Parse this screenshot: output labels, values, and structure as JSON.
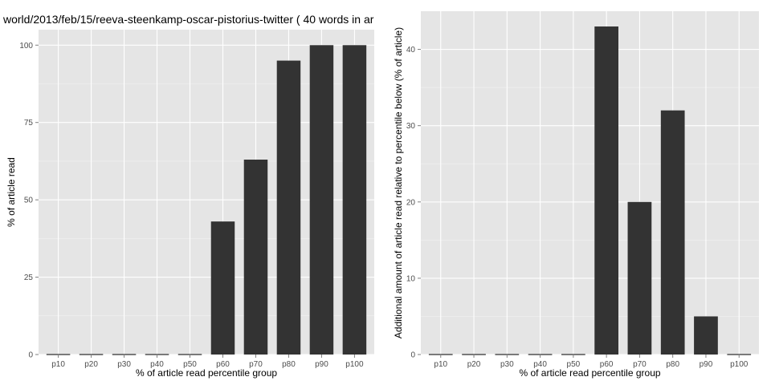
{
  "page": {
    "title": "world/2013/feb/15/reeva-steenkamp-oscar-pistorius-twitter ( 40 words in ar"
  },
  "colors": {
    "panel_bg": "#e5e5e5",
    "grid_major": "#ffffff",
    "grid_minor": "#f2f2f2",
    "bar_fill": "#333333",
    "tick_text": "#4d4d4d"
  },
  "chart_data": [
    {
      "type": "bar",
      "title": "world/2013/feb/15/reeva-steenkamp-oscar-pistorius-twitter ( 40 words in ar",
      "xlabel": "% of article read percentile group",
      "ylabel": "% of article read",
      "categories": [
        "p10",
        "p20",
        "p30",
        "p40",
        "p50",
        "p60",
        "p70",
        "p80",
        "p90",
        "p100"
      ],
      "values": [
        0,
        0,
        0,
        0,
        0,
        43,
        63,
        95,
        100,
        100
      ],
      "ylim": [
        0,
        105
      ],
      "yticks": [
        0,
        25,
        50,
        75,
        100
      ],
      "ytick_labels": [
        "0",
        "25",
        "50",
        "75",
        "100"
      ],
      "grid": true,
      "bar_color": "#333333"
    },
    {
      "type": "bar",
      "title": "",
      "xlabel": "% of article read percentile group",
      "ylabel": "Additional amount of article read relative to percentile below (% of article)",
      "categories": [
        "p10",
        "p20",
        "p30",
        "p40",
        "p50",
        "p60",
        "p70",
        "p80",
        "p90",
        "p100"
      ],
      "values": [
        0,
        0,
        0,
        0,
        0,
        43,
        20,
        32,
        5,
        0
      ],
      "ylim": [
        0,
        45
      ],
      "yticks": [
        0,
        10,
        20,
        30,
        40
      ],
      "ytick_labels": [
        "0",
        "10",
        "20",
        "30",
        "40"
      ],
      "grid": true,
      "bar_color": "#333333"
    }
  ]
}
